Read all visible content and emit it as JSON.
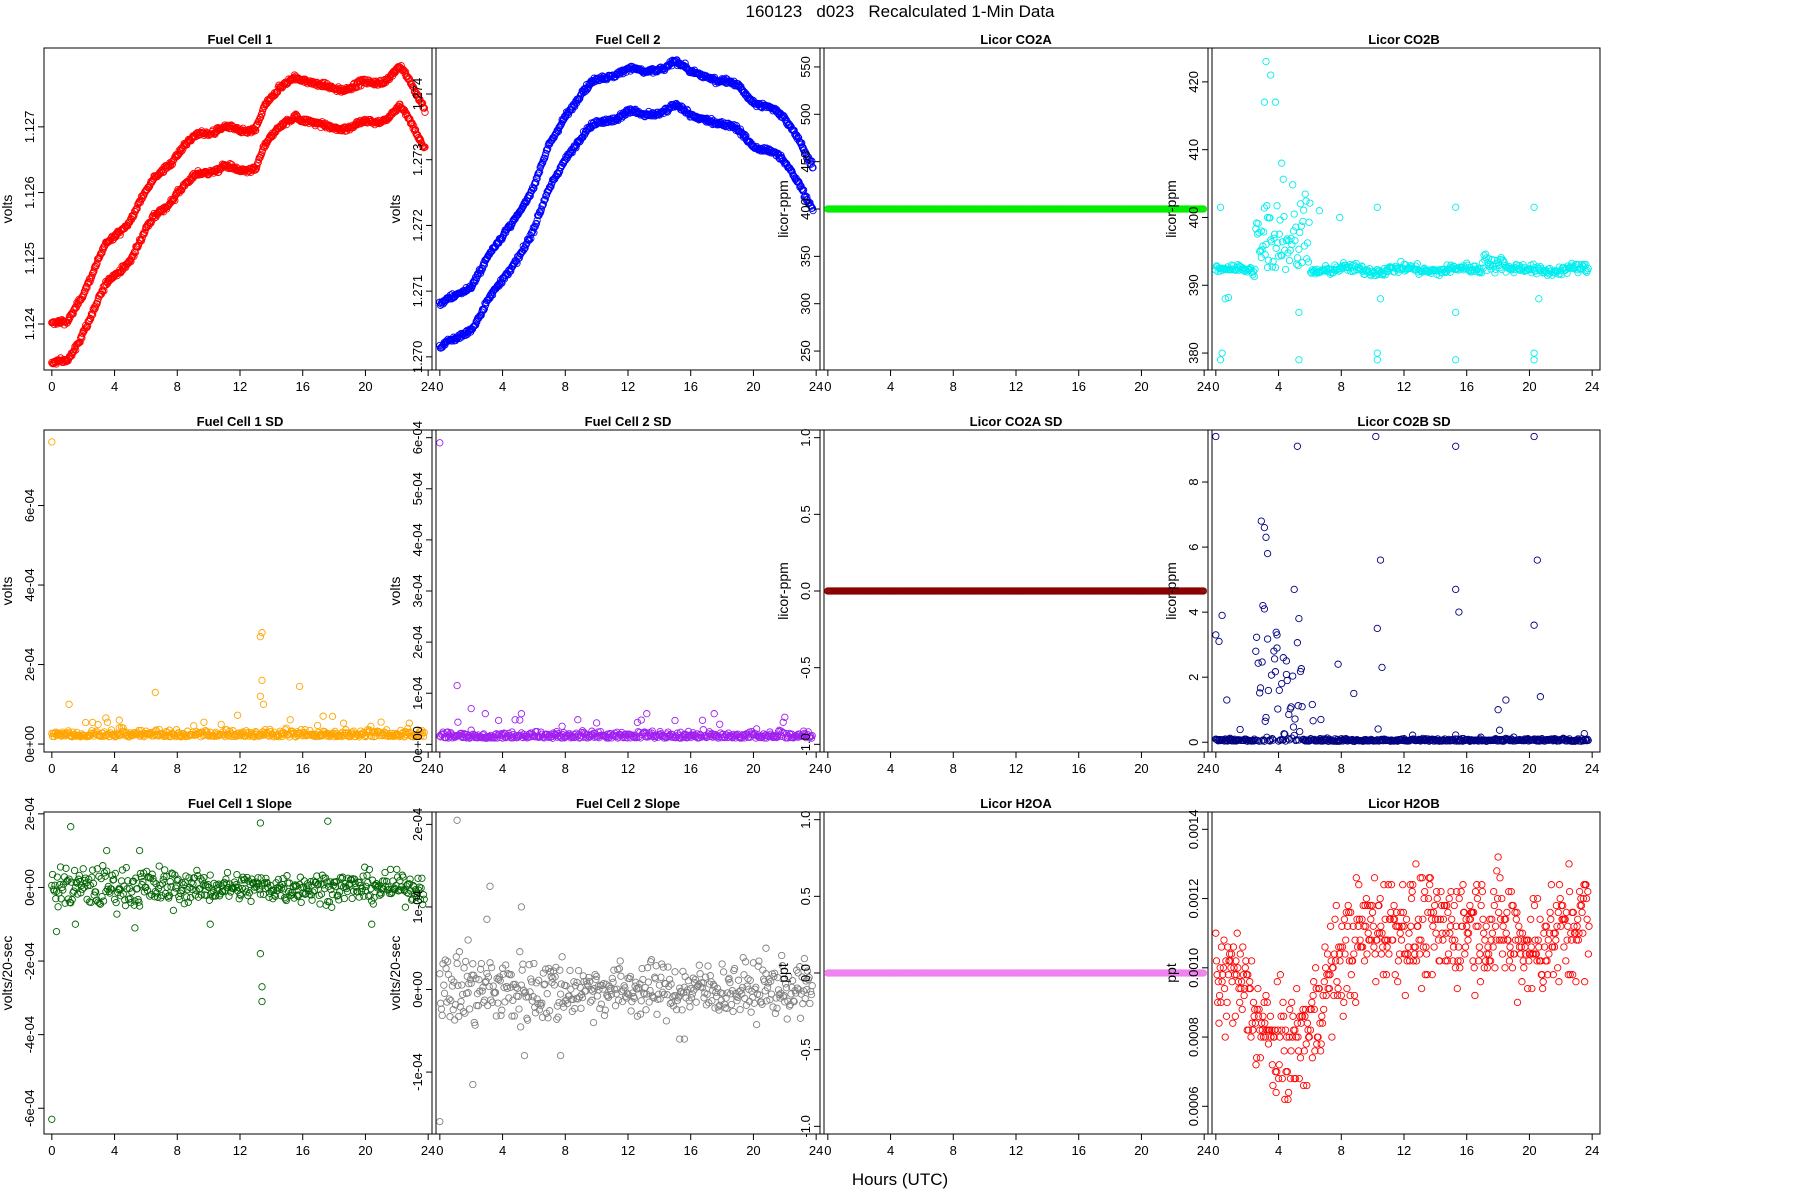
{
  "page": {
    "title": "160123   d023   Recalculated 1-Min Data",
    "xcaption": "Hours (UTC)"
  },
  "chart_data": [
    {
      "type": "scatter",
      "title": "Fuel Cell 1",
      "ylabel": "volts",
      "color": "#ff0000",
      "pattern": "fc1",
      "ylim": [
        1.1233,
        1.1282
      ],
      "yticks": [
        1.124,
        1.125,
        1.126,
        1.127
      ],
      "yticklabels": [
        "1.124",
        "1.125",
        "1.126",
        "1.127"
      ],
      "xlim": [
        -0.5,
        24.5
      ],
      "xticks": [
        0,
        4,
        8,
        12,
        16,
        20,
        24
      ],
      "xticklabels": [
        "0",
        "4",
        "8",
        "12",
        "16",
        "20",
        "24"
      ]
    },
    {
      "type": "scatter",
      "title": "Fuel Cell 2",
      "ylabel": "volts",
      "color": "#0000ff",
      "pattern": "fc2",
      "ylim": [
        1.2698,
        1.2747
      ],
      "yticks": [
        1.27,
        1.271,
        1.272,
        1.273,
        1.274
      ],
      "yticklabels": [
        "1.270",
        "1.271",
        "1.272",
        "1.273",
        "1.274"
      ],
      "xlim": [
        -0.5,
        24.5
      ],
      "xticks": [
        0,
        4,
        8,
        12,
        16,
        20,
        24
      ],
      "xticklabels": [
        "0",
        "4",
        "8",
        "12",
        "16",
        "20",
        "24"
      ]
    },
    {
      "type": "scatter",
      "title": "Licor CO2A",
      "ylabel": "licor-ppm",
      "color": "#00ee00",
      "pattern": "const",
      "constValue": 400,
      "ylim": [
        230,
        570
      ],
      "yticks": [
        250,
        300,
        350,
        400,
        450,
        500,
        550
      ],
      "yticklabels": [
        "250",
        "300",
        "350",
        "400",
        "450",
        "500",
        "550"
      ],
      "xlim": [
        -0.5,
        24.5
      ],
      "xticks": [
        0,
        4,
        8,
        12,
        16,
        20,
        24
      ],
      "xticklabels": [
        "0",
        "4",
        "8",
        "12",
        "16",
        "20",
        "24"
      ]
    },
    {
      "type": "scatter",
      "title": "Licor CO2B",
      "ylabel": "licor-ppm",
      "color": "#00eeee",
      "pattern": "co2b",
      "ylim": [
        377.5,
        425
      ],
      "yticks": [
        380,
        390,
        400,
        410,
        420
      ],
      "yticklabels": [
        "380",
        "390",
        "400",
        "410",
        "420"
      ],
      "xlim": [
        -0.5,
        24.5
      ],
      "xticks": [
        0,
        4,
        8,
        12,
        16,
        20,
        24
      ],
      "xticklabels": [
        "0",
        "4",
        "8",
        "12",
        "16",
        "20",
        "24"
      ]
    },
    {
      "type": "scatter",
      "title": "Fuel Cell 1 SD",
      "ylabel": "volts",
      "color": "#ffa500",
      "pattern": "sd1",
      "ylim": [
        -2e-05,
        0.00079
      ],
      "yticks": [
        0,
        0.0002,
        0.0004,
        0.0006
      ],
      "yticklabels": [
        "0e+00",
        "2e-04",
        "4e-04",
        "6e-04"
      ],
      "xlim": [
        -0.5,
        24.5
      ],
      "xticks": [
        0,
        4,
        8,
        12,
        16,
        20,
        24
      ],
      "xticklabels": [
        "0",
        "4",
        "8",
        "12",
        "16",
        "20",
        "24"
      ]
    },
    {
      "type": "scatter",
      "title": "Fuel Cell 2 SD",
      "ylabel": "volts",
      "color": "#a020f0",
      "pattern": "sd2",
      "ylim": [
        -1.5e-05,
        0.000615
      ],
      "yticks": [
        0,
        0.0001,
        0.0002,
        0.0003,
        0.0004,
        0.0005,
        0.0006
      ],
      "yticklabels": [
        "0e+00",
        "1e-04",
        "2e-04",
        "3e-04",
        "4e-04",
        "5e-04",
        "6e-04"
      ],
      "xlim": [
        -0.5,
        24.5
      ],
      "xticks": [
        0,
        4,
        8,
        12,
        16,
        20,
        24
      ],
      "xticklabels": [
        "0",
        "4",
        "8",
        "12",
        "16",
        "20",
        "24"
      ]
    },
    {
      "type": "scatter",
      "title": "Licor CO2A SD",
      "ylabel": "licor-ppm",
      "color": "#8b0000",
      "pattern": "const",
      "constValue": 0,
      "ylim": [
        -1.05,
        1.05
      ],
      "yticks": [
        -1,
        -0.5,
        0,
        0.5,
        1
      ],
      "yticklabels": [
        "-1.0",
        "-0.5",
        "0.0",
        "0.5",
        "1.0"
      ],
      "xlim": [
        -0.5,
        24.5
      ],
      "xticks": [
        0,
        4,
        8,
        12,
        16,
        20,
        24
      ],
      "xticklabels": [
        "0",
        "4",
        "8",
        "12",
        "16",
        "20",
        "24"
      ]
    },
    {
      "type": "scatter",
      "title": "Licor CO2B SD",
      "ylabel": "licor-ppm",
      "color": "#000080",
      "pattern": "co2bsd",
      "ylim": [
        -0.3,
        9.6
      ],
      "yticks": [
        0,
        2,
        4,
        6,
        8
      ],
      "yticklabels": [
        "0",
        "2",
        "4",
        "6",
        "8"
      ],
      "xlim": [
        -0.5,
        24.5
      ],
      "xticks": [
        0,
        4,
        8,
        12,
        16,
        20,
        24
      ],
      "xticklabels": [
        "0",
        "4",
        "8",
        "12",
        "16",
        "20",
        "24"
      ]
    },
    {
      "type": "scatter",
      "title": "Fuel Cell 1 Slope",
      "ylabel": "volts/20-sec",
      "color": "#006400",
      "pattern": "slope1",
      "ylim": [
        -0.00067,
        0.000205
      ],
      "yticks": [
        -0.0006,
        -0.0004,
        -0.0002,
        0,
        0.0002
      ],
      "yticklabels": [
        "-6e-04",
        "-4e-04",
        "-2e-04",
        "0e+00",
        "2e-04"
      ],
      "xlim": [
        -0.5,
        24.5
      ],
      "xticks": [
        0,
        4,
        8,
        12,
        16,
        20,
        24
      ],
      "xticklabels": [
        "0",
        "4",
        "8",
        "12",
        "16",
        "20",
        "24"
      ]
    },
    {
      "type": "scatter",
      "title": "Fuel Cell 2 Slope",
      "ylabel": "volts/20-sec",
      "color": "#808080",
      "pattern": "slope2",
      "ylim": [
        -0.000175,
        0.000215
      ],
      "yticks": [
        -0.0001,
        0,
        0.0001,
        0.0002
      ],
      "yticklabels": [
        "-1e-04",
        "0e+00",
        "1e-04",
        "2e-04"
      ],
      "xlim": [
        -0.5,
        24.5
      ],
      "xticks": [
        0,
        4,
        8,
        12,
        16,
        20,
        24
      ],
      "xticklabels": [
        "0",
        "4",
        "8",
        "12",
        "16",
        "20",
        "24"
      ]
    },
    {
      "type": "scatter",
      "title": "Licor H2OA",
      "ylabel": "ppt",
      "color": "#ee82ee",
      "pattern": "const",
      "constValue": 0,
      "ylim": [
        -1.05,
        1.05
      ],
      "yticks": [
        -1,
        -0.5,
        0,
        0.5,
        1
      ],
      "yticklabels": [
        "-1.0",
        "-0.5",
        "0.0",
        "0.5",
        "1.0"
      ],
      "xlim": [
        -0.5,
        24.5
      ],
      "xticks": [
        0,
        4,
        8,
        12,
        16,
        20,
        24
      ],
      "xticklabels": [
        "0",
        "4",
        "8",
        "12",
        "16",
        "20",
        "24"
      ]
    },
    {
      "type": "scatter",
      "title": "Licor H2OB",
      "ylabel": "ppt",
      "color": "#ff0000",
      "pattern": "h2ob",
      "ylim": [
        0.00052,
        0.00145
      ],
      "yticks": [
        0.0006,
        0.0008,
        0.001,
        0.0012,
        0.0014
      ],
      "yticklabels": [
        "0.0006",
        "0.0008",
        "0.0010",
        "0.0012",
        "0.0014"
      ],
      "xlim": [
        -0.5,
        24.5
      ],
      "xticks": [
        0,
        4,
        8,
        12,
        16,
        20,
        24
      ],
      "xticklabels": [
        "0",
        "4",
        "8",
        "12",
        "16",
        "20",
        "24"
      ]
    }
  ]
}
